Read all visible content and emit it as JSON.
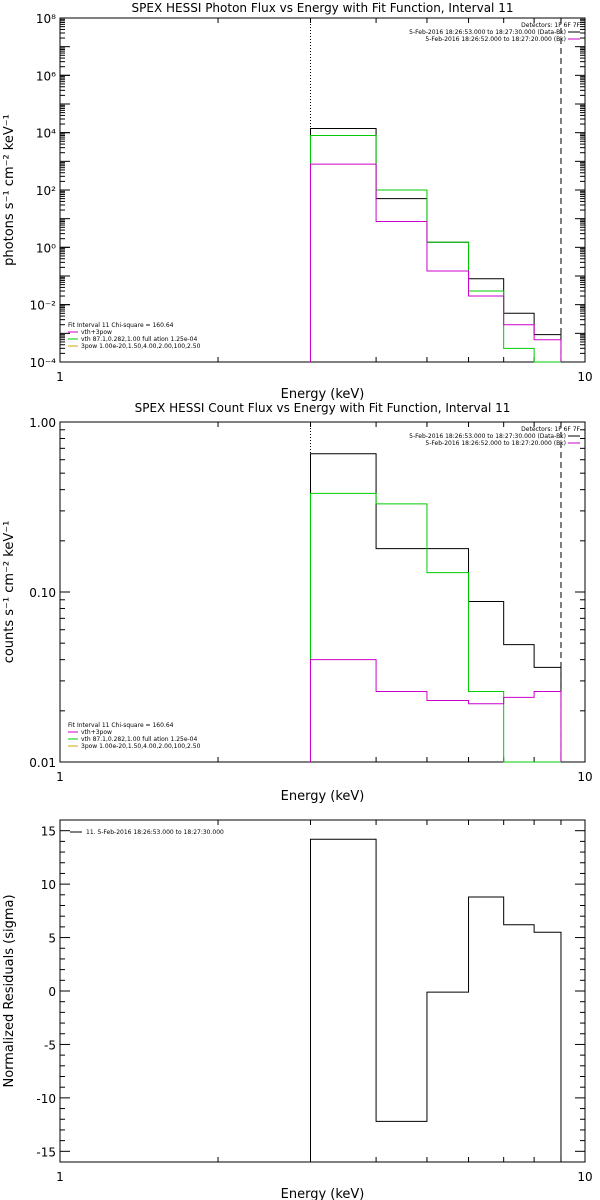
{
  "chart_data": [
    {
      "type": "line",
      "title": "SPEX HESSI Photon Flux vs Energy with Fit Function, Interval 11",
      "xlabel": "Energy (keV)",
      "ylabel": "photons s⁻¹ cm⁻² keV⁻¹",
      "xlog": true,
      "ylog": true,
      "xlim": [
        1,
        10
      ],
      "ylim": [
        0.0001,
        100000000
      ],
      "x_tick_labels": [
        "1",
        "10"
      ],
      "y_tick_labels": [
        "10⁻⁴",
        "10⁻²",
        "10⁰",
        "10²",
        "10⁴",
        "10⁶",
        "10⁸"
      ],
      "vlines": [
        {
          "x": 3.0,
          "style": "dotted"
        },
        {
          "x": 9.0,
          "style": "dashed"
        }
      ],
      "top_right_legend": [
        "Detectors: 1F 6F 7F",
        "5-Feb-2016 18:26:53.000 to 18:27:30.000 (Data-Bk)",
        "5-Feb-2016 18:26:52.000 to 18:27:20.000 (Bk)"
      ],
      "fit_legend_title": "Fit Interval 11    Chi-square = 160.64",
      "fit_legend": [
        "vth+3pow",
        "vth 87.1,0.282,1.00  full ation 1.25e-04",
        "3pow 1.00e-20,1.50,4.00,2.00,100,2.50"
      ],
      "edges": [
        3.0,
        4.0,
        5.0,
        6.0,
        7.0,
        8.0,
        9.0
      ],
      "series": [
        {
          "name": "5-Feb-2016 18:26:53.000 to 18:27:30.000 (Data-Bk)",
          "color": "#000000",
          "values": [
            14000,
            50,
            1.5,
            0.08,
            0.005,
            0.0009
          ]
        },
        {
          "name": "vth+3pow",
          "color": "#00cc00",
          "values": [
            8000,
            100,
            1.5,
            0.03,
            0.0003,
            3e-05
          ]
        },
        {
          "name": "5-Feb-2016 18:26:52.000 to 18:27:20.000 (Bk)",
          "color": "#cc00cc",
          "values": [
            800,
            8,
            0.15,
            0.02,
            0.002,
            0.0006
          ]
        }
      ]
    },
    {
      "type": "line",
      "title": "SPEX HESSI Count Flux vs Energy with Fit Function, Interval 11",
      "xlabel": "Energy (keV)",
      "ylabel": "counts s⁻¹ cm⁻² keV⁻¹",
      "xlog": true,
      "ylog": true,
      "xlim": [
        1,
        10
      ],
      "ylim": [
        0.01,
        1.0
      ],
      "x_tick_labels": [
        "1",
        "10"
      ],
      "y_tick_labels": [
        "0.01",
        "0.10",
        "1.00"
      ],
      "vlines": [
        {
          "x": 3.0,
          "style": "dotted"
        },
        {
          "x": 9.0,
          "style": "dashed"
        }
      ],
      "top_right_legend": [
        "Detectors: 1F 6F 7F",
        "5-Feb-2016 18:26:53.000 to 18:27:30.000 (Data-Bk)",
        "5-Feb-2016 18:26:52.000 to 18:27:20.000 (Bk)"
      ],
      "fit_legend_title": "Fit Interval 11    Chi-square = 160.64",
      "fit_legend": [
        "vth+3pow",
        "vth 87.1,0.282,1.00  full ation 1.25e-04",
        "3pow 1.00e-20,1.50,4.00,2.00,100,2.50"
      ],
      "edges": [
        3.0,
        4.0,
        5.0,
        6.0,
        7.0,
        8.0,
        9.0
      ],
      "series": [
        {
          "name": "5-Feb-2016 18:26:53.000 to 18:27:30.000 (Data-Bk)",
          "color": "#000000",
          "values": [
            0.65,
            0.18,
            0.18,
            0.088,
            0.049,
            0.036
          ]
        },
        {
          "name": "vth+3pow",
          "color": "#00cc00",
          "values": [
            0.38,
            0.33,
            0.13,
            0.026,
            0.008,
            0.008
          ]
        },
        {
          "name": "5-Feb-2016 18:26:52.000 to 18:27:20.000 (Bk)",
          "color": "#cc00cc",
          "values": [
            0.04,
            0.026,
            0.023,
            0.022,
            0.024,
            0.026
          ]
        }
      ]
    },
    {
      "type": "line",
      "title": "",
      "xlabel": "Energy (keV)",
      "ylabel": "Normalized Residuals (sigma)",
      "xlog": true,
      "ylog": false,
      "xlim": [
        1,
        10
      ],
      "ylim": [
        -16,
        16
      ],
      "x_tick_labels": [
        "1",
        "10"
      ],
      "y_ticks": [
        -15,
        -10,
        -5,
        0,
        5,
        10,
        15
      ],
      "legend": "11.  5-Feb-2016 18:26:53.000 to 18:27:30.000",
      "edges": [
        3.0,
        4.0,
        5.0,
        6.0,
        7.0,
        8.0,
        9.0
      ],
      "series": [
        {
          "name": "11.  5-Feb-2016 18:26:53.000 to 18:27:30.000",
          "color": "#000000",
          "values": [
            14.2,
            -12.2,
            -0.1,
            8.8,
            6.2,
            5.5
          ]
        }
      ]
    }
  ]
}
